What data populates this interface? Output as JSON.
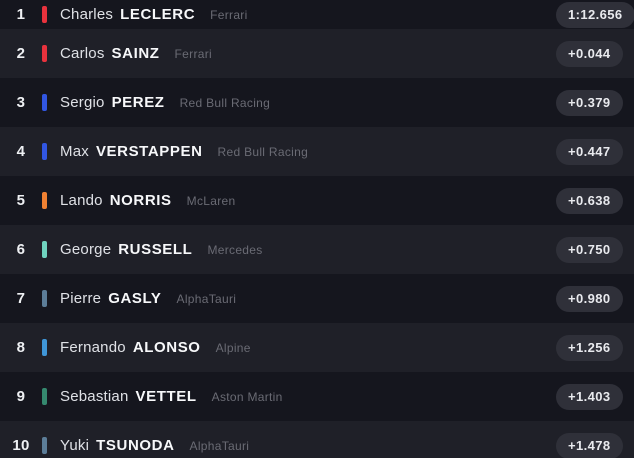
{
  "leaderboard": {
    "rows": [
      {
        "position": "1",
        "driver_first": "Charles",
        "driver_last": "LECLERC",
        "team": "Ferrari",
        "team_color": "#e8323d",
        "time": "1:12.656"
      },
      {
        "position": "2",
        "driver_first": "Carlos",
        "driver_last": "SAINZ",
        "team": "Ferrari",
        "team_color": "#e8323d",
        "time": "+0.044"
      },
      {
        "position": "3",
        "driver_first": "Sergio",
        "driver_last": "PEREZ",
        "team": "Red Bull Racing",
        "team_color": "#3156e3",
        "time": "+0.379"
      },
      {
        "position": "4",
        "driver_first": "Max",
        "driver_last": "VERSTAPPEN",
        "team": "Red Bull Racing",
        "team_color": "#3156e3",
        "time": "+0.447"
      },
      {
        "position": "5",
        "driver_first": "Lando",
        "driver_last": "NORRIS",
        "team": "McLaren",
        "team_color": "#f08132",
        "time": "+0.638"
      },
      {
        "position": "6",
        "driver_first": "George",
        "driver_last": "RUSSELL",
        "team": "Mercedes",
        "team_color": "#6fd3bf",
        "time": "+0.750"
      },
      {
        "position": "7",
        "driver_first": "Pierre",
        "driver_last": "GASLY",
        "team": "AlphaTauri",
        "team_color": "#5c7d98",
        "time": "+0.980"
      },
      {
        "position": "8",
        "driver_first": "Fernando",
        "driver_last": "ALONSO",
        "team": "Alpine",
        "team_color": "#3f96d8",
        "time": "+1.256"
      },
      {
        "position": "9",
        "driver_first": "Sebastian",
        "driver_last": "VETTEL",
        "team": "Aston Martin",
        "team_color": "#35896f",
        "time": "+1.403"
      },
      {
        "position": "10",
        "driver_first": "Yuki",
        "driver_last": "TSUNODA",
        "team": "AlphaTauri",
        "team_color": "#5c7d98",
        "time": "+1.478"
      }
    ]
  },
  "colors": {
    "row_dark": "#15161e",
    "row_light": "#1f2028",
    "badge_background": "#2f3039",
    "badge_text": "#e9eaee",
    "team_text": "#6a6b74"
  }
}
